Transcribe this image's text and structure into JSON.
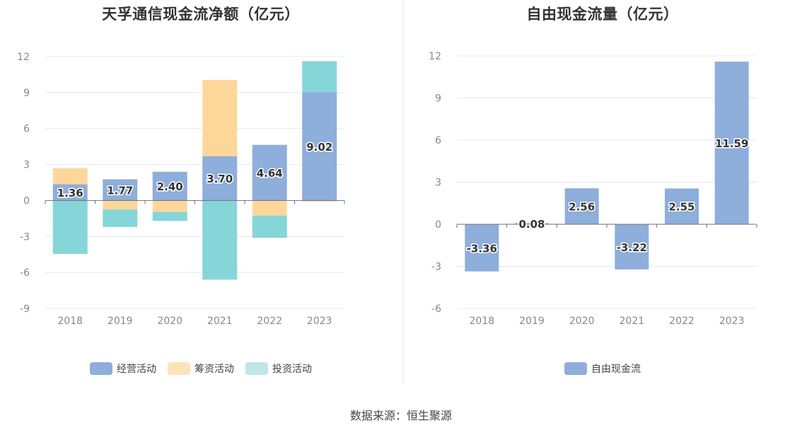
{
  "footer": {
    "source": "数据来源：恒生聚源"
  },
  "chart_data": [
    {
      "type": "bar",
      "stacked": true,
      "title": "天孚通信现金流净额（亿元）",
      "categories": [
        "2018",
        "2019",
        "2020",
        "2021",
        "2022",
        "2023"
      ],
      "ylim": [
        -9,
        12
      ],
      "yticks": [
        -9,
        -6,
        -3,
        0,
        3,
        6,
        9,
        12
      ],
      "grid": true,
      "legend_position": "bottom",
      "series": [
        {
          "name": "经营活动",
          "color": "#8eaedb",
          "values": [
            1.36,
            1.77,
            2.4,
            3.7,
            4.64,
            9.02
          ],
          "labels": [
            "1.36",
            "1.77",
            "2.40",
            "3.70",
            "4.64",
            "9.02"
          ]
        },
        {
          "name": "筹资活动",
          "color": "#fdd79a",
          "values": [
            1.33,
            -0.75,
            -0.95,
            6.35,
            -1.25,
            -0.08
          ]
        },
        {
          "name": "投资活动",
          "color": "#86d5d9",
          "values": [
            -4.45,
            -1.45,
            -0.75,
            -6.6,
            -1.85,
            2.6
          ]
        }
      ],
      "legend_colors": {
        "经营活动": "#8eaedb",
        "筹资活动": "#fde3b8",
        "投资活动": "#bfe6e9"
      }
    },
    {
      "type": "bar",
      "title": "自由现金流量（亿元）",
      "categories": [
        "2018",
        "2019",
        "2020",
        "2021",
        "2022",
        "2023"
      ],
      "ylim": [
        -6,
        12
      ],
      "yticks": [
        -6,
        -3,
        0,
        3,
        6,
        9,
        12
      ],
      "grid": true,
      "legend_position": "bottom",
      "series": [
        {
          "name": "自由现金流",
          "color": "#8eaedb",
          "values": [
            -3.36,
            0.08,
            2.56,
            -3.22,
            2.55,
            11.59
          ],
          "labels": [
            "-3.36",
            "0.08",
            "2.56",
            "-3.22",
            "2.55",
            "11.59"
          ]
        }
      ]
    }
  ]
}
